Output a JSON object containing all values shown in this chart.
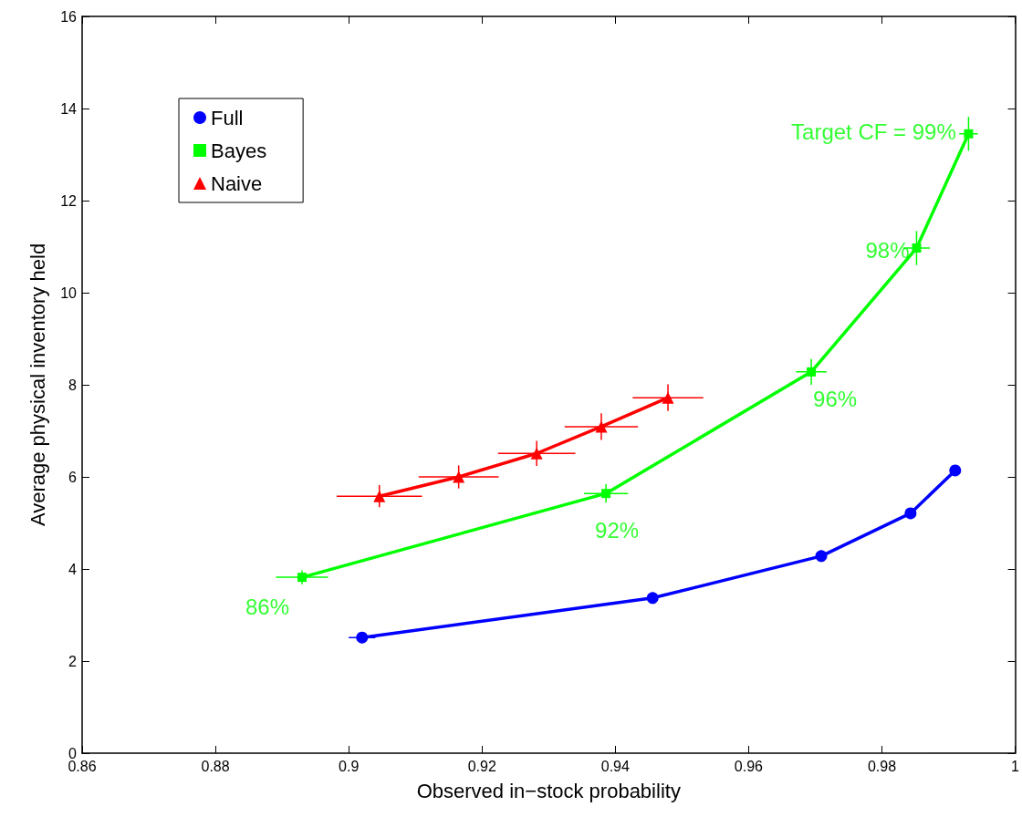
{
  "chart_data": {
    "type": "line",
    "xlabel": "Observed in−stock probability",
    "ylabel": "Average physical inventory held",
    "xlim": [
      0.86,
      1
    ],
    "xticks": [
      0.86,
      0.88,
      0.9,
      0.92,
      0.94,
      0.96,
      0.98,
      1
    ],
    "ylim": [
      0,
      16
    ],
    "yticks": [
      0,
      2,
      4,
      6,
      8,
      10,
      12,
      14,
      16
    ],
    "grid": false,
    "legend": "top left",
    "line_style": "solid",
    "series": [
      {
        "name": "Full",
        "color": "#0000ff",
        "marker": "circle",
        "x": [
          0.902,
          0.9456,
          0.9709,
          0.9843,
          0.991
        ],
        "values": [
          2.51,
          3.37,
          4.28,
          5.21,
          6.14
        ],
        "xerrors": [
          0.002,
          null,
          null,
          null,
          null
        ]
      },
      {
        "name": "Bayes",
        "color": "#00ff00",
        "marker": "square",
        "x": [
          0.893,
          0.9386,
          0.9694,
          0.9852,
          0.993
        ],
        "values": [
          3.82,
          5.64,
          8.28,
          10.97,
          13.45
        ],
        "xerrors": [
          0.0039,
          0.0033,
          0.0023,
          0.002,
          0.0014
        ],
        "errors": [
          0.15,
          0.2,
          0.28,
          0.37,
          0.37
        ]
      },
      {
        "name": "Naive",
        "color": "#ff0000",
        "marker": "triangle",
        "x": [
          0.9046,
          0.9165,
          0.9282,
          0.9379,
          0.9479
        ],
        "values": [
          5.58,
          6.0,
          6.51,
          7.09,
          7.72
        ],
        "xerrors": [
          0.0064,
          0.006,
          0.0058,
          0.0055,
          0.0053
        ],
        "errors": [
          0.24,
          0.25,
          0.27,
          0.29,
          0.29
        ]
      }
    ],
    "annotations": [
      {
        "text": "86%",
        "x": 0.893,
        "y": 3.82
      },
      {
        "text": "92%",
        "x": 0.9386,
        "y": 5.64
      },
      {
        "text": "96%",
        "x": 0.9694,
        "y": 8.28
      },
      {
        "text": "98%",
        "x": 0.9852,
        "y": 10.97
      },
      {
        "text": "Target CF = 99%",
        "x": 0.993,
        "y": 13.45
      }
    ]
  }
}
